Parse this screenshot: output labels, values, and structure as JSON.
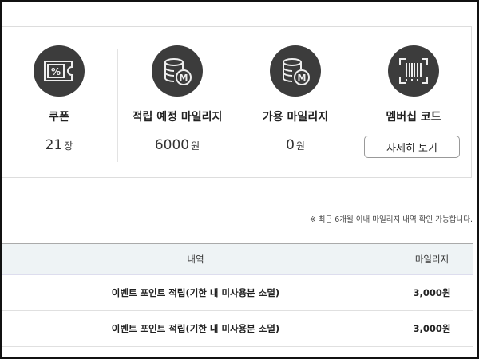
{
  "summary": [
    {
      "icon": "coupon-icon",
      "label": "쿠폰",
      "value": "21",
      "unit": "장"
    },
    {
      "icon": "mileage-coins-icon",
      "label": "적립 예정 마일리지",
      "value": "6000",
      "unit": "원"
    },
    {
      "icon": "mileage-coins-icon",
      "label": "가용 마일리지",
      "value": "0",
      "unit": "원"
    },
    {
      "icon": "barcode-icon",
      "label": "멤버십 코드",
      "button": "자세히 보기"
    }
  ],
  "note": "※ 최근 6개월 이내 마일리지 내역 확인 가능합니다.",
  "table": {
    "headers": [
      "내역",
      "마일리지"
    ],
    "rows": [
      [
        "이벤트 포인트 적립(기한 내 미사용분 소멸)",
        "3,000원"
      ],
      [
        "이벤트 포인트 적립(기한 내 미사용분 소멸)",
        "3,000원"
      ]
    ]
  }
}
